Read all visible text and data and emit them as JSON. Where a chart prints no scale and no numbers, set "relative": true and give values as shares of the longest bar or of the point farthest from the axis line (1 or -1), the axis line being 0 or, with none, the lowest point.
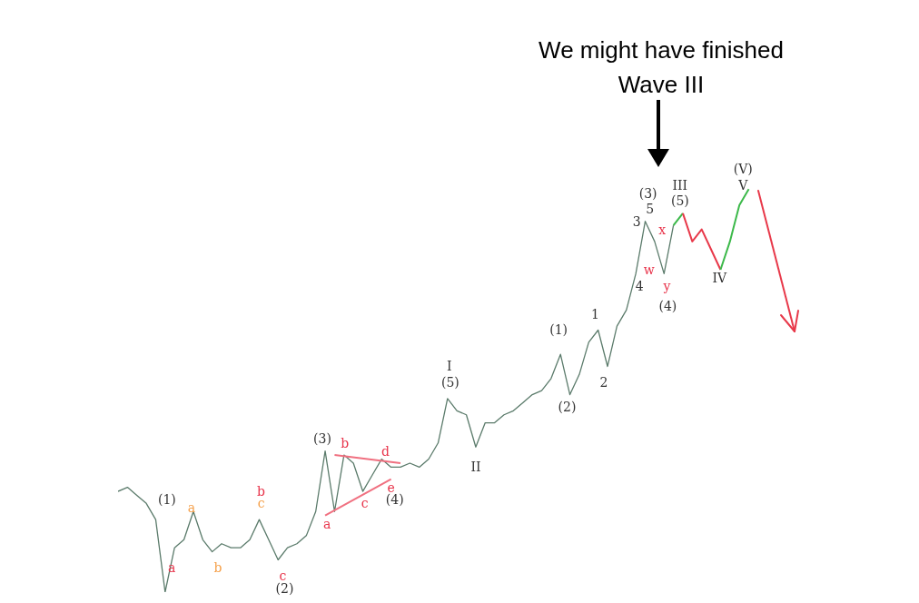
{
  "chart_data": {
    "type": "line",
    "title": "We might have finished Wave III",
    "relative": true,
    "categories": [
      null,
      null,
      null,
      null,
      null,
      null,
      null,
      null,
      null,
      null,
      null,
      null,
      null,
      null,
      null,
      null,
      null,
      null,
      null,
      null,
      null,
      null,
      null,
      null,
      null,
      null,
      null,
      null,
      null,
      null,
      null,
      null,
      null,
      null,
      null,
      null,
      null,
      null,
      null,
      null,
      null,
      null,
      null,
      null,
      null,
      null,
      null,
      null,
      null,
      null,
      null,
      null,
      null,
      null,
      null,
      null,
      null,
      null,
      null,
      null,
      null,
      null,
      null,
      null,
      null,
      null,
      null,
      null,
      null,
      null,
      null,
      null
    ],
    "series": [
      {
        "color": "#5b7b6b",
        "values": [
          0.25,
          0.26,
          0.24,
          0.22,
          0.18,
          0,
          0.11,
          0.13,
          0.2,
          0.13,
          0.1,
          0.12,
          0.11,
          0.11,
          0.13,
          0.18,
          0.13,
          0.08,
          0.11,
          0.12,
          0.14,
          0.2,
          0.35,
          0.2,
          0.34,
          0.32,
          0.25,
          0.29,
          0.33,
          0.31,
          0.31,
          0.32,
          0.31,
          0.33,
          0.37,
          0.48,
          0.45,
          0.44,
          0.36,
          0.42,
          0.42,
          0.44,
          0.45,
          0.47,
          0.49,
          0.5,
          0.53,
          0.59,
          0.49,
          0.54,
          0.62,
          0.65,
          0.56,
          0.66,
          0.7,
          0.79,
          0.92,
          0.87,
          0.79,
          0.91,
          null,
          null,
          null,
          null,
          null,
          null,
          null,
          null,
          null,
          null,
          null,
          null
        ]
      },
      {
        "color": "#f07080",
        "values": [
          null,
          null,
          null,
          null,
          null,
          null,
          null,
          null,
          null,
          null,
          null,
          null,
          null,
          null,
          null,
          null,
          null,
          null,
          null,
          null,
          null,
          null,
          null,
          0.34,
          null,
          null,
          null,
          null,
          null,
          null,
          0.32,
          null,
          null,
          null,
          null,
          null,
          null,
          null,
          null,
          null,
          null,
          null,
          null,
          null,
          null,
          null,
          null,
          null,
          null,
          null,
          null,
          null,
          null,
          null,
          null,
          null,
          null,
          null,
          null,
          null,
          null,
          null,
          null,
          null,
          null,
          null,
          null,
          null,
          null,
          null,
          null,
          null
        ]
      },
      {
        "color": "#f07080",
        "values": [
          null,
          null,
          null,
          null,
          null,
          null,
          null,
          null,
          null,
          null,
          null,
          null,
          null,
          null,
          null,
          null,
          null,
          null,
          null,
          null,
          null,
          null,
          0.19,
          null,
          null,
          null,
          null,
          null,
          null,
          0.28,
          null,
          null,
          null,
          null,
          null,
          null,
          null,
          null,
          null,
          null,
          null,
          null,
          null,
          null,
          null,
          null,
          null,
          null,
          null,
          null,
          null,
          null,
          null,
          null,
          null,
          null,
          null,
          null,
          null,
          null,
          null,
          null,
          null,
          null,
          null,
          null,
          null,
          null,
          null,
          null,
          null,
          null
        ]
      },
      {
        "color": "#3cb94a",
        "values": [
          null,
          null,
          null,
          null,
          null,
          null,
          null,
          null,
          null,
          null,
          null,
          null,
          null,
          null,
          null,
          null,
          null,
          null,
          null,
          null,
          null,
          null,
          null,
          null,
          null,
          null,
          null,
          null,
          null,
          null,
          null,
          null,
          null,
          null,
          null,
          null,
          null,
          null,
          null,
          null,
          null,
          null,
          null,
          null,
          null,
          null,
          null,
          null,
          null,
          null,
          null,
          null,
          null,
          null,
          null,
          null,
          null,
          null,
          null,
          0.91,
          0.94,
          null,
          null,
          null,
          null,
          null,
          null,
          null,
          null,
          null,
          null,
          null
        ]
      },
      {
        "color": "#e8394a",
        "values": [
          null,
          null,
          null,
          null,
          null,
          null,
          null,
          null,
          null,
          null,
          null,
          null,
          null,
          null,
          null,
          null,
          null,
          null,
          null,
          null,
          null,
          null,
          null,
          null,
          null,
          null,
          null,
          null,
          null,
          null,
          null,
          null,
          null,
          null,
          null,
          null,
          null,
          null,
          null,
          null,
          null,
          null,
          null,
          null,
          null,
          null,
          null,
          null,
          null,
          null,
          null,
          null,
          null,
          null,
          null,
          null,
          null,
          null,
          null,
          null,
          0.94,
          0.87,
          0.9,
          0.85,
          0.8,
          null,
          null,
          null,
          null,
          null,
          null,
          null
        ]
      },
      {
        "color": "#3cb94a",
        "values": [
          null,
          null,
          null,
          null,
          null,
          null,
          null,
          null,
          null,
          null,
          null,
          null,
          null,
          null,
          null,
          null,
          null,
          null,
          null,
          null,
          null,
          null,
          null,
          null,
          null,
          null,
          null,
          null,
          null,
          null,
          null,
          null,
          null,
          null,
          null,
          null,
          null,
          null,
          null,
          null,
          null,
          null,
          null,
          null,
          null,
          null,
          null,
          null,
          null,
          null,
          null,
          null,
          null,
          null,
          null,
          null,
          null,
          null,
          null,
          null,
          null,
          null,
          null,
          null,
          0.8,
          0.87,
          0.96,
          1,
          null,
          null,
          null,
          null
        ]
      }
    ],
    "annotations": [
      "(1)",
      "a",
      "a",
      "b",
      "b",
      "c",
      "c",
      "(2)",
      "(3)",
      "a",
      "b",
      "c",
      "d",
      "e",
      "(4)",
      "I",
      "(5)",
      "II",
      "(1)",
      "(2)",
      "1",
      "2",
      "(3)",
      "5",
      "3",
      "4",
      "x",
      "w",
      "y",
      "(4)",
      "III",
      "(5)",
      "IV",
      "(V)",
      "V"
    ]
  }
}
